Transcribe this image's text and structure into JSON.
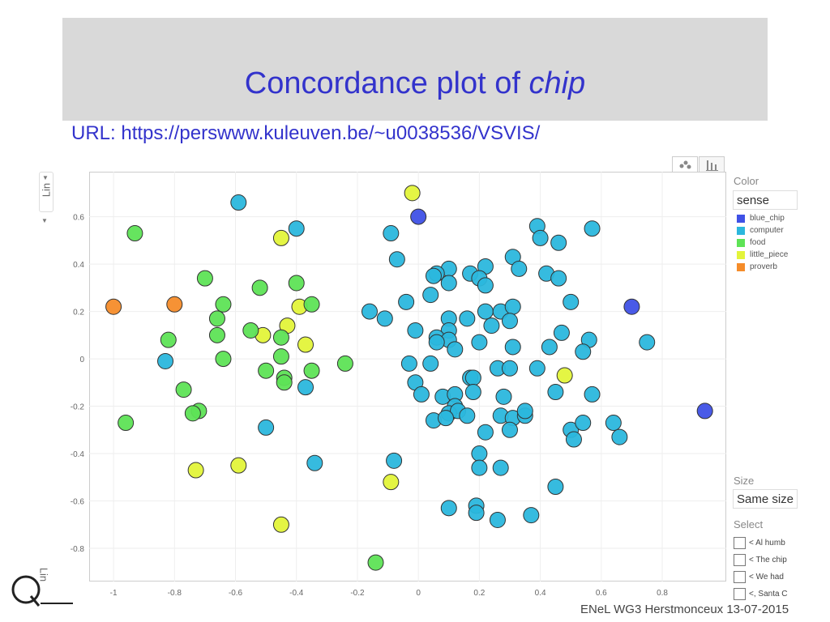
{
  "slide": {
    "title_main": "Concordance plot of ",
    "title_italic": "chip",
    "url": "URL: https://perswww.kuleuven.be/~u0038536/VSVIS/",
    "footer": "ENeL WG3 Herstmonceux  13-07-2015"
  },
  "controls": {
    "lin_label": "Lin",
    "lin_label_bottom": "Lin",
    "color_label": "Color",
    "color_value": "sense",
    "size_label": "Size",
    "size_value": "Same size",
    "select_label": "Select",
    "select_items": [
      "< Al humb",
      "< The chip",
      "< We had",
      "<, Santa C"
    ]
  },
  "legend": [
    {
      "label": "blue_chip",
      "color": "#3f51e6"
    },
    {
      "label": "computer",
      "color": "#2bb7dd"
    },
    {
      "label": "food",
      "color": "#5ee356"
    },
    {
      "label": "little_piece",
      "color": "#e3f43a"
    },
    {
      "label": "proverb",
      "color": "#f58c2a"
    }
  ],
  "chart_data": {
    "type": "scatter",
    "xlim": [
      -1.08,
      1.01
    ],
    "ylim": [
      -0.94,
      0.79
    ],
    "xticks": [
      -1,
      -0.8,
      -0.6,
      -0.4,
      -0.2,
      0,
      0.2,
      0.4,
      0.6,
      0.8
    ],
    "yticks": [
      0.6,
      0.4,
      0.2,
      0,
      -0.2,
      -0.4,
      -0.6,
      -0.8
    ],
    "grid": true,
    "legend_position": "right",
    "series": [
      {
        "name": "blue_chip",
        "color": "#3f51e6",
        "points": [
          [
            0,
            0.6
          ],
          [
            0.7,
            0.22
          ],
          [
            0.94,
            -0.22
          ]
        ]
      },
      {
        "name": "proverb",
        "color": "#f58c2a",
        "points": [
          [
            -1,
            0.22
          ],
          [
            -0.8,
            0.23
          ]
        ]
      },
      {
        "name": "little_piece",
        "color": "#e3f43a",
        "points": [
          [
            -0.02,
            0.7
          ],
          [
            -0.45,
            0.51
          ],
          [
            -0.39,
            0.22
          ],
          [
            -0.43,
            0.14
          ],
          [
            -0.51,
            0.1
          ],
          [
            -0.37,
            0.06
          ],
          [
            0.48,
            -0.07
          ],
          [
            -0.73,
            -0.47
          ],
          [
            -0.59,
            -0.45
          ],
          [
            -0.09,
            -0.52
          ],
          [
            -0.45,
            -0.7
          ]
        ]
      },
      {
        "name": "food",
        "color": "#5ee356",
        "points": [
          [
            -0.93,
            0.53
          ],
          [
            -0.7,
            0.34
          ],
          [
            -0.52,
            0.3
          ],
          [
            -0.4,
            0.32
          ],
          [
            -0.64,
            0.23
          ],
          [
            -0.66,
            0.17
          ],
          [
            -0.55,
            0.12
          ],
          [
            -0.35,
            0.23
          ],
          [
            -0.82,
            0.08
          ],
          [
            -0.66,
            0.1
          ],
          [
            -0.45,
            0.09
          ],
          [
            -0.64,
            0
          ],
          [
            -0.45,
            0.01
          ],
          [
            -0.24,
            -0.02
          ],
          [
            -0.5,
            -0.05
          ],
          [
            -0.35,
            -0.05
          ],
          [
            -0.44,
            -0.08
          ],
          [
            -0.44,
            -0.1
          ],
          [
            -0.77,
            -0.13
          ],
          [
            -0.72,
            -0.22
          ],
          [
            -0.74,
            -0.23
          ],
          [
            -0.96,
            -0.27
          ],
          [
            -0.14,
            -0.86
          ]
        ]
      },
      {
        "name": "computer",
        "color": "#2bb7dd",
        "points": [
          [
            -0.59,
            0.66
          ],
          [
            -0.4,
            0.55
          ],
          [
            -0.09,
            0.53
          ],
          [
            -0.07,
            0.42
          ],
          [
            0.39,
            0.56
          ],
          [
            0.4,
            0.51
          ],
          [
            0.46,
            0.49
          ],
          [
            0.57,
            0.55
          ],
          [
            0.31,
            0.43
          ],
          [
            0.33,
            0.38
          ],
          [
            0.22,
            0.39
          ],
          [
            0.1,
            0.38
          ],
          [
            0.06,
            0.36
          ],
          [
            0.05,
            0.35
          ],
          [
            0.17,
            0.36
          ],
          [
            0.2,
            0.34
          ],
          [
            0.22,
            0.31
          ],
          [
            0.1,
            0.32
          ],
          [
            0.42,
            0.36
          ],
          [
            0.46,
            0.34
          ],
          [
            0.04,
            0.27
          ],
          [
            -0.04,
            0.24
          ],
          [
            -0.16,
            0.2
          ],
          [
            -0.11,
            0.17
          ],
          [
            0.1,
            0.17
          ],
          [
            0.16,
            0.17
          ],
          [
            0.22,
            0.2
          ],
          [
            0.27,
            0.2
          ],
          [
            0.31,
            0.22
          ],
          [
            0.5,
            0.24
          ],
          [
            0.24,
            0.14
          ],
          [
            0.3,
            0.16
          ],
          [
            -0.01,
            0.12
          ],
          [
            0.1,
            0.12
          ],
          [
            0.06,
            0.09
          ],
          [
            0.1,
            0.08
          ],
          [
            0.47,
            0.11
          ],
          [
            0.56,
            0.08
          ],
          [
            0.06,
            0.07
          ],
          [
            0.2,
            0.07
          ],
          [
            0.12,
            0.04
          ],
          [
            0.31,
            0.05
          ],
          [
            0.43,
            0.05
          ],
          [
            0.54,
            0.03
          ],
          [
            0.75,
            0.07
          ],
          [
            -0.83,
            -0.01
          ],
          [
            -0.03,
            -0.02
          ],
          [
            0.04,
            -0.02
          ],
          [
            0.26,
            -0.04
          ],
          [
            0.3,
            -0.04
          ],
          [
            0.39,
            -0.04
          ],
          [
            -0.01,
            -0.1
          ],
          [
            0.17,
            -0.08
          ],
          [
            0.18,
            -0.08
          ],
          [
            -0.37,
            -0.12
          ],
          [
            0.01,
            -0.15
          ],
          [
            0.08,
            -0.16
          ],
          [
            0.12,
            -0.15
          ],
          [
            0.18,
            -0.14
          ],
          [
            0.28,
            -0.16
          ],
          [
            0.45,
            -0.14
          ],
          [
            0.57,
            -0.15
          ],
          [
            0.12,
            -0.2
          ],
          [
            0.1,
            -0.23
          ],
          [
            0.13,
            -0.22
          ],
          [
            0.16,
            -0.24
          ],
          [
            0.27,
            -0.24
          ],
          [
            0.31,
            -0.25
          ],
          [
            0.35,
            -0.24
          ],
          [
            0.35,
            -0.22
          ],
          [
            0.05,
            -0.26
          ],
          [
            0.09,
            -0.25
          ],
          [
            -0.5,
            -0.29
          ],
          [
            0.22,
            -0.31
          ],
          [
            0.3,
            -0.3
          ],
          [
            0.5,
            -0.3
          ],
          [
            0.54,
            -0.27
          ],
          [
            0.64,
            -0.27
          ],
          [
            0.66,
            -0.33
          ],
          [
            0.51,
            -0.34
          ],
          [
            -0.34,
            -0.44
          ],
          [
            -0.08,
            -0.43
          ],
          [
            0.2,
            -0.4
          ],
          [
            0.2,
            -0.46
          ],
          [
            0.27,
            -0.46
          ],
          [
            0.45,
            -0.54
          ],
          [
            0.1,
            -0.63
          ],
          [
            0.19,
            -0.62
          ],
          [
            0.19,
            -0.65
          ],
          [
            0.26,
            -0.68
          ],
          [
            0.37,
            -0.66
          ]
        ]
      }
    ]
  }
}
